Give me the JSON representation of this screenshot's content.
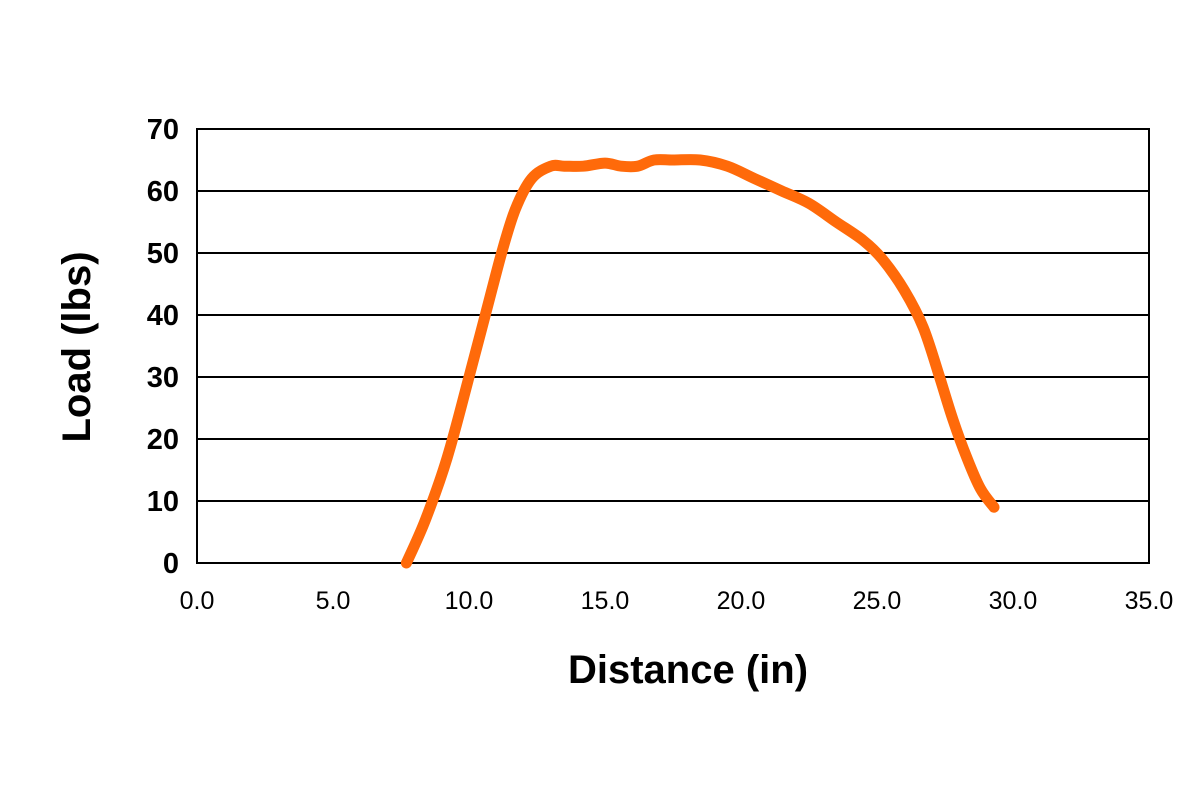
{
  "chart_data": {
    "type": "line",
    "title": "",
    "xlabel": "Distance (in)",
    "ylabel": "Load (lbs)",
    "xlim": [
      0,
      35
    ],
    "ylim": [
      0,
      70
    ],
    "x_ticks": [
      "0.0",
      "5.0",
      "10.0",
      "15.0",
      "20.0",
      "25.0",
      "30.0",
      "35.0"
    ],
    "y_ticks": [
      "0",
      "10",
      "20",
      "30",
      "40",
      "50",
      "60",
      "70"
    ],
    "grid": "horizontal",
    "legend": "none",
    "series": [
      {
        "color": "#ff6a0a",
        "x": [
          7.7,
          8.4,
          9.2,
          10.0,
          10.6,
          11.2,
          11.7,
          12.3,
          13.0,
          13.5,
          14.2,
          15.0,
          15.6,
          16.2,
          16.8,
          17.5,
          18.5,
          19.5,
          20.5,
          21.5,
          22.5,
          23.5,
          24.5,
          25.2,
          26.0,
          26.7,
          27.3,
          27.8,
          28.3,
          28.8,
          29.3
        ],
        "y": [
          0,
          7,
          17,
          30,
          40,
          50,
          57,
          62,
          64,
          64,
          64,
          64.5,
          64,
          64,
          65,
          65,
          65,
          64,
          62,
          60,
          58,
          55,
          52,
          49,
          44,
          38,
          30,
          23,
          17,
          12,
          9
        ]
      }
    ]
  }
}
